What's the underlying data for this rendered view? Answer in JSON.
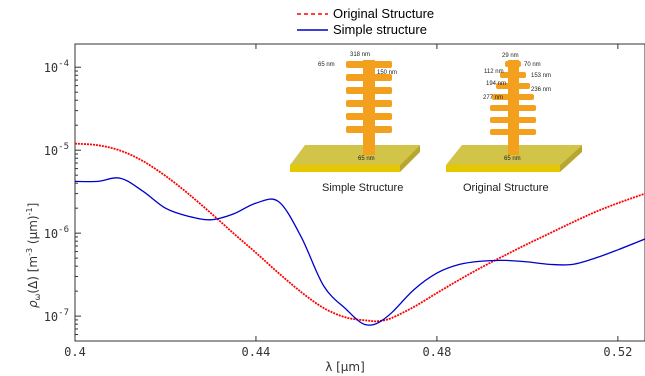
{
  "chart_data": {
    "type": "line",
    "x_scale": "linear",
    "y_scale": "log",
    "xlim": [
      0.4,
      0.526
    ],
    "ylim_log10": [
      -7.3,
      -3.72
    ],
    "xlabel": "λ [μm]",
    "ylabel": "ρ",
    "ylabel_sub": "ω",
    "ylabel_rest": "(Δ)  [m",
    "ylabel_exp": "-3",
    "ylabel_mid": " (μm)",
    "ylabel_exp2": "-1",
    "ylabel_end": "]",
    "x_ticks": [
      {
        "value": 0.4,
        "label": "0.4"
      },
      {
        "value": 0.44,
        "label": "0.44"
      },
      {
        "value": 0.48,
        "label": "0.48"
      },
      {
        "value": 0.52,
        "label": "0.52"
      }
    ],
    "y_ticks": [
      {
        "exp": -4,
        "base": "10",
        "sup": "-4"
      },
      {
        "exp": -5,
        "base": "10",
        "sup": "-5"
      },
      {
        "exp": -6,
        "base": "10",
        "sup": "-6"
      },
      {
        "exp": -7,
        "base": "10",
        "sup": "-7"
      }
    ],
    "legend_position": "top-center",
    "series": [
      {
        "name": "Original Structure",
        "color": "#ff0000",
        "dash": "dashed",
        "x": [
          0.4,
          0.405,
          0.41,
          0.415,
          0.42,
          0.425,
          0.43,
          0.435,
          0.44,
          0.445,
          0.45,
          0.455,
          0.46,
          0.465,
          0.467,
          0.47,
          0.475,
          0.48,
          0.485,
          0.49,
          0.495,
          0.5,
          0.505,
          0.51,
          0.515,
          0.52,
          0.526
        ],
        "y": [
          1.2e-05,
          1.15e-05,
          9.9e-06,
          7.4e-06,
          4.9e-06,
          3e-06,
          1.75e-06,
          1e-06,
          5.8e-07,
          3.3e-07,
          1.95e-07,
          1.25e-07,
          9.6e-08,
          8.8e-08,
          8.7e-08,
          9.5e-08,
          1.3e-07,
          1.9e-07,
          2.75e-07,
          3.9e-07,
          5.4e-07,
          7.4e-07,
          1e-06,
          1.35e-06,
          1.8e-06,
          2.3e-06,
          3e-06
        ]
      },
      {
        "name": "Simple structure",
        "color": "#0000cc",
        "dash": "solid",
        "x": [
          0.4,
          0.405,
          0.41,
          0.415,
          0.42,
          0.425,
          0.43,
          0.435,
          0.44,
          0.445,
          0.45,
          0.455,
          0.46,
          0.463,
          0.465,
          0.467,
          0.47,
          0.475,
          0.48,
          0.485,
          0.49,
          0.495,
          0.5,
          0.505,
          0.51,
          0.515,
          0.52,
          0.526
        ],
        "y": [
          4.2e-06,
          4.2e-06,
          4.6e-06,
          3.2e-06,
          2e-06,
          1.6e-06,
          1.45e-06,
          1.7e-06,
          2.3e-06,
          2.4e-06,
          9e-07,
          2.3e-07,
          1.2e-07,
          8.5e-08,
          7.8e-08,
          8.3e-08,
          1.1e-07,
          2.1e-07,
          3.3e-07,
          4.2e-07,
          4.6e-07,
          4.7e-07,
          4.5e-07,
          4.2e-07,
          4.2e-07,
          5e-07,
          6.3e-07,
          8.5e-07
        ]
      }
    ]
  },
  "inset": {
    "simple_caption": "Simple Structure",
    "original_caption": "Original Structure",
    "simple_labels": [
      "318 nm",
      "65 nm",
      "150 nm",
      "65 nm"
    ],
    "original_labels": [
      "29 nm",
      "70 nm",
      "112 nm",
      "153 nm",
      "194 nm",
      "236 nm",
      "277 nm",
      "65 nm"
    ],
    "colors": {
      "pillar": "#f2a01e",
      "base_top": "#d2c449",
      "base_side": "#e6c800"
    }
  }
}
